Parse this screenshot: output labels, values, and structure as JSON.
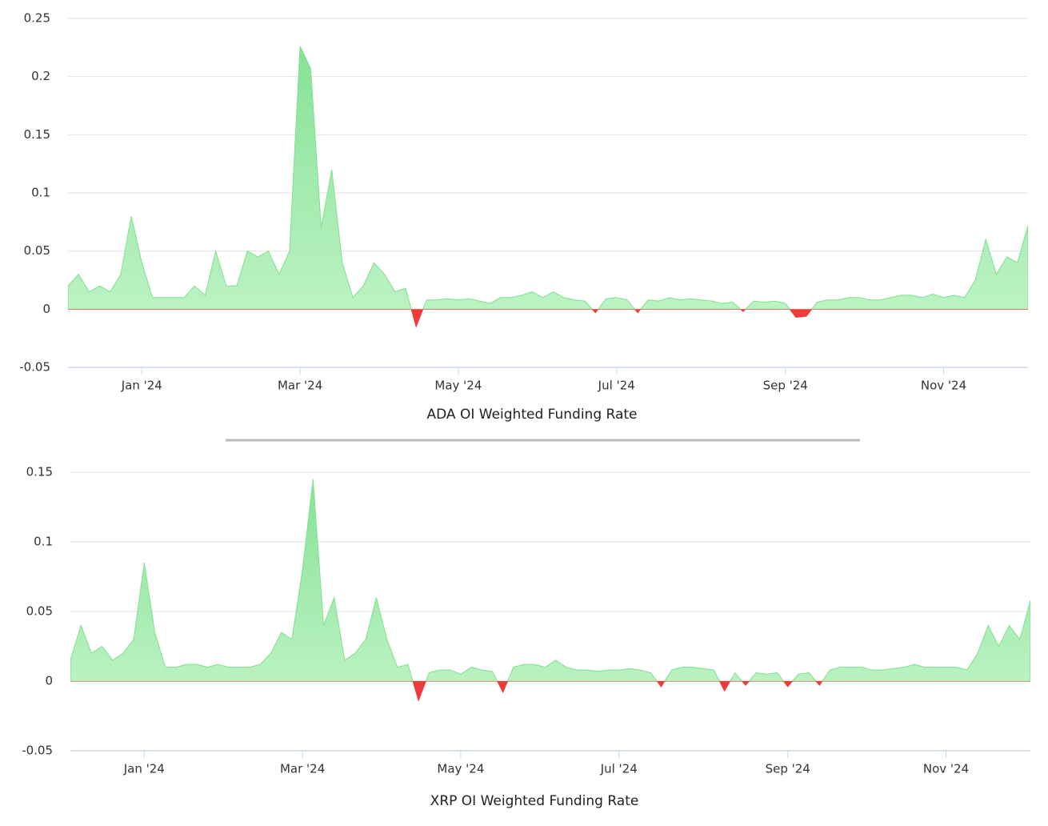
{
  "chart_data": [
    {
      "type": "area",
      "title": "ADA OI Weighted Funding Rate",
      "categories": [
        null,
        null,
        null,
        null,
        null,
        null,
        null,
        "Jan '24",
        null,
        null,
        null,
        null,
        null,
        null,
        null,
        null,
        null,
        null,
        null,
        null,
        null,
        null,
        "Mar '24",
        null,
        null,
        null,
        null,
        null,
        null,
        null,
        null,
        null,
        null,
        null,
        null,
        null,
        null,
        "May '24",
        null,
        null,
        null,
        null,
        null,
        null,
        null,
        null,
        null,
        null,
        null,
        null,
        null,
        null,
        "Jul '24",
        null,
        null,
        null,
        null,
        null,
        null,
        null,
        null,
        null,
        null,
        null,
        null,
        null,
        null,
        null,
        "Sep '24",
        null,
        null,
        null,
        null,
        null,
        null,
        null,
        null,
        null,
        null,
        null,
        null,
        null,
        null,
        "Nov '24",
        null,
        null,
        null,
        null,
        null,
        null,
        null,
        null
      ],
      "values": [
        0.02,
        0.03,
        0.015,
        0.02,
        0.015,
        0.03,
        0.08,
        0.04,
        0.01,
        0.01,
        0.01,
        0.01,
        0.02,
        0.012,
        0.05,
        0.02,
        0.02,
        0.05,
        0.045,
        0.05,
        0.03,
        0.05,
        0.226,
        0.207,
        0.07,
        0.12,
        0.04,
        0.01,
        0.02,
        0.04,
        0.03,
        0.015,
        0.018,
        -0.015,
        0.008,
        0.008,
        0.009,
        0.008,
        0.009,
        0.007,
        0.005,
        0.01,
        0.01,
        0.012,
        0.015,
        0.01,
        0.015,
        0.01,
        0.008,
        0.007,
        -0.003,
        0.009,
        0.01,
        0.008,
        -0.003,
        0.008,
        0.007,
        0.01,
        0.008,
        0.009,
        0.008,
        0.007,
        0.005,
        0.006,
        -0.002,
        0.007,
        0.006,
        0.007,
        0.005,
        -0.007,
        -0.006,
        0.006,
        0.008,
        0.008,
        0.01,
        0.01,
        0.008,
        0.008,
        0.01,
        0.012,
        0.012,
        0.01,
        0.013,
        0.01,
        0.012,
        0.01,
        0.025,
        0.06,
        0.03,
        0.045,
        0.04,
        0.072
      ],
      "color": "#7fe08f",
      "negative_color": "#f03a3a",
      "ylim": [
        -0.05,
        0.25
      ],
      "yticks": [
        -0.05,
        0,
        0.05,
        0.1,
        0.15,
        0.2,
        0.25
      ],
      "grid": true
    },
    {
      "type": "area",
      "title": "XRP OI Weighted Funding Rate",
      "categories": [
        null,
        null,
        null,
        null,
        null,
        null,
        null,
        "Jan '24",
        null,
        null,
        null,
        null,
        null,
        null,
        null,
        null,
        null,
        null,
        null,
        null,
        null,
        null,
        "Mar '24",
        null,
        null,
        null,
        null,
        null,
        null,
        null,
        null,
        null,
        null,
        null,
        null,
        null,
        null,
        "May '24",
        null,
        null,
        null,
        null,
        null,
        null,
        null,
        null,
        null,
        null,
        null,
        null,
        null,
        null,
        "Jul '24",
        null,
        null,
        null,
        null,
        null,
        null,
        null,
        null,
        null,
        null,
        null,
        null,
        null,
        null,
        null,
        "Sep '24",
        null,
        null,
        null,
        null,
        null,
        null,
        null,
        null,
        null,
        null,
        null,
        null,
        null,
        null,
        "Nov '24",
        null,
        null,
        null,
        null,
        null,
        null,
        null,
        null
      ],
      "values": [
        0.015,
        0.04,
        0.02,
        0.025,
        0.015,
        0.02,
        0.03,
        0.085,
        0.035,
        0.01,
        0.01,
        0.012,
        0.012,
        0.01,
        0.012,
        0.01,
        0.01,
        0.01,
        0.012,
        0.02,
        0.035,
        0.03,
        0.08,
        0.145,
        0.04,
        0.06,
        0.015,
        0.02,
        0.03,
        0.06,
        0.03,
        0.01,
        0.012,
        -0.014,
        0.006,
        0.008,
        0.008,
        0.005,
        0.01,
        0.008,
        0.007,
        -0.008,
        0.01,
        0.012,
        0.012,
        0.01,
        0.015,
        0.01,
        0.008,
        0.008,
        0.007,
        0.008,
        0.008,
        0.009,
        0.008,
        0.006,
        -0.004,
        0.008,
        0.01,
        0.01,
        0.009,
        0.008,
        -0.007,
        0.006,
        -0.003,
        0.006,
        0.005,
        0.006,
        -0.004,
        0.005,
        0.006,
        -0.003,
        0.008,
        0.01,
        0.01,
        0.01,
        0.008,
        0.008,
        0.009,
        0.01,
        0.012,
        0.01,
        0.01,
        0.01,
        0.01,
        0.008,
        0.02,
        0.04,
        0.025,
        0.04,
        0.03,
        0.058
      ],
      "color": "#7fe08f",
      "negative_color": "#f03a3a",
      "ylim": [
        -0.05,
        0.15
      ],
      "yticks": [
        -0.05,
        0,
        0.05,
        0.1,
        0.15
      ],
      "grid": true
    }
  ]
}
